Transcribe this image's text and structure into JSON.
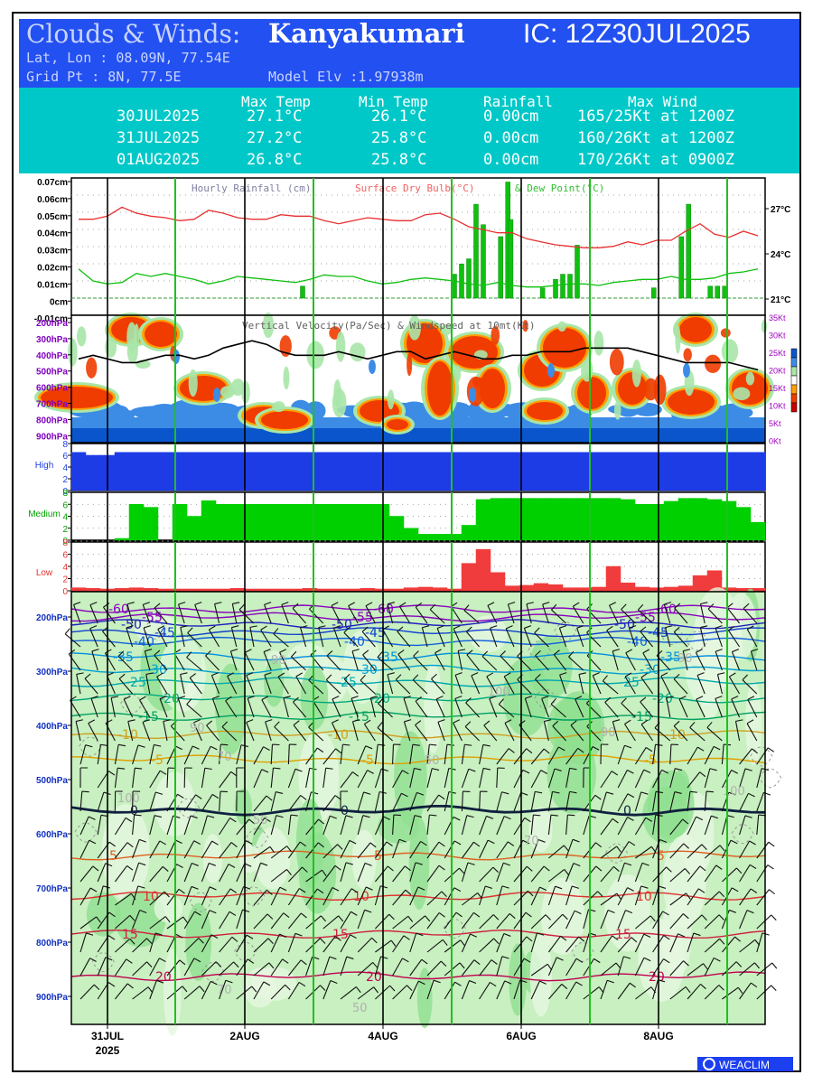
{
  "header": {
    "title": "Clouds & Winds:",
    "location": "Kanyakumari",
    "ic": "IC: 12Z30JUL2025",
    "latlon": "Lat, Lon : 08.09N, 77.54E",
    "grid": "Grid Pt  : 8N, 77.5E",
    "elev": "Model Elv :1.97938m"
  },
  "summary": {
    "columns": [
      "Max Temp",
      "Min Temp",
      "Rainfall",
      "Max Wind"
    ],
    "rows": [
      {
        "date": "30JUL2025",
        "max": "27.1°C",
        "min": "26.1°C",
        "rain": "0.00cm",
        "wind": "165/25Kt at 1200Z"
      },
      {
        "date": "31JUL2025",
        "max": "27.2°C",
        "min": "25.8°C",
        "rain": "0.00cm",
        "wind": "160/26Kt at 1200Z"
      },
      {
        "date": "01AUG2025",
        "max": "26.8°C",
        "min": "25.8°C",
        "rain": "0.00cm",
        "wind": "170/26Kt at 0900Z"
      }
    ]
  },
  "chart_data": [
    {
      "type": "bar",
      "title": "Hourly Rainfall (cm)",
      "legend": [
        "Surface Dry Bulb(°C)",
        "& Dew Point(°C)"
      ],
      "y_ticks": [
        "0.07cm",
        "0.06cm",
        "0.05cm",
        "0.04cm",
        "0.03cm",
        "0.02cm",
        "0.01cm",
        "0cm",
        "-0.01cm"
      ],
      "right_ticks": [
        "27°C",
        "24°C",
        "21°C"
      ],
      "rain_bars": [
        [
          16,
          0.007
        ],
        [
          26.5,
          0.014
        ],
        [
          27,
          0.02
        ],
        [
          27.5,
          0.023
        ],
        [
          28,
          0.055
        ],
        [
          28.5,
          0.043
        ],
        [
          29.7,
          0.036
        ],
        [
          30.2,
          0.068
        ],
        [
          30.4,
          0.046
        ],
        [
          32.6,
          0.006
        ],
        [
          33.5,
          0.011
        ],
        [
          34,
          0.014
        ],
        [
          34.5,
          0.014
        ],
        [
          35,
          0.031
        ],
        [
          40.3,
          0.006
        ],
        [
          42.2,
          0.036
        ],
        [
          42.7,
          0.055
        ],
        [
          44.2,
          0.007
        ],
        [
          44.7,
          0.007
        ],
        [
          45.2,
          0.007
        ]
      ],
      "temp_c": [
        26.3,
        26.3,
        26.5,
        27.1,
        26.7,
        26.5,
        26.4,
        26.2,
        26.3,
        26.9,
        26.7,
        26.4,
        26.3,
        26.3,
        26.6,
        26.5,
        26.5,
        26.2,
        26.0,
        26.2,
        26.4,
        26.3,
        26.2,
        26.2,
        26.6,
        26.7,
        26.3,
        25.8,
        25.6,
        25.4,
        25.4,
        25.0,
        24.8,
        24.6,
        24.5,
        24.4,
        24.4,
        24.5,
        24.8,
        24.6,
        24.9,
        24.9,
        25.5,
        26.0,
        25.3,
        25.1,
        25.5,
        25.2
      ],
      "dew_c": [
        23.0,
        22.2,
        22.0,
        22.1,
        22.7,
        22.5,
        22.7,
        22.5,
        22.3,
        22.0,
        22.2,
        22.5,
        22.4,
        22.3,
        22.2,
        22.1,
        22.3,
        22.6,
        22.5,
        22.5,
        22.2,
        22.0,
        22.1,
        22.3,
        22.4,
        22.3,
        22.2,
        22.0,
        21.9,
        22.1,
        21.9,
        21.8,
        21.8,
        21.9,
        22.0,
        22.0,
        21.9,
        22.1,
        22.2,
        22.3,
        22.3,
        22.5,
        22.3,
        22.3,
        22.4,
        22.7,
        22.8,
        23.0
      ]
    },
    {
      "type": "heatmap",
      "title": "Vertical Velocity(Pa/Sec) & Windspeed at 10mt(Kt)",
      "y_ticks": [
        "200hPa",
        "300hPa",
        "400hPa",
        "500hPa",
        "600hPa",
        "700hPa",
        "800hPa",
        "900hPa"
      ],
      "right_ticks": [
        "35Kt",
        "30Kt",
        "25Kt",
        "20Kt",
        "15Kt",
        "10Kt",
        "5Kt",
        "0Kt"
      ],
      "colorbar": [
        "#0a55cc",
        "#3c8ce6",
        "#a8e6a8",
        "#ffffff",
        "#ffa000",
        "#f03c00",
        "#c80000"
      ],
      "windspeed_kt": [
        23,
        24,
        23,
        22,
        22,
        23,
        24,
        24,
        23,
        24,
        26,
        27,
        28,
        27,
        25,
        24,
        24,
        24,
        25,
        24,
        23,
        24,
        25,
        25,
        23,
        24,
        25,
        24,
        23,
        23,
        24,
        24,
        25,
        25,
        25,
        26,
        26,
        26,
        26,
        25,
        24,
        23,
        22,
        22,
        22,
        22,
        21,
        20
      ]
    },
    {
      "type": "bar",
      "title": "High",
      "y_ticks": [
        "8",
        "6",
        "4",
        "2",
        "0"
      ],
      "values": [
        6.5,
        6,
        6,
        6.5,
        6.5,
        6.5,
        6.5,
        6.5,
        6.5,
        6.5,
        6.5,
        6.5,
        6.5,
        6.5,
        6.5,
        6.5,
        6.5,
        6.5,
        6.5,
        6.5,
        6.5,
        6.5,
        6.5,
        6.5,
        6.5,
        6.5,
        6.5,
        6.5,
        6.5,
        6.5,
        6.5,
        6.5,
        6.5,
        6.5,
        6.5,
        6.5,
        6.5,
        6.5,
        6.5,
        6.5,
        6.5,
        6.5,
        6.5,
        6.5,
        6.5,
        6.5,
        6.5,
        6.5
      ]
    },
    {
      "type": "bar",
      "title": "Medium",
      "y_ticks": [
        "8",
        "6",
        "4",
        "2",
        "0"
      ],
      "values": [
        0,
        0,
        0,
        0.3,
        6,
        5.5,
        0,
        6,
        4,
        6.6,
        6,
        6,
        6,
        6,
        6,
        6,
        6,
        6,
        6,
        6,
        6,
        6,
        4,
        2,
        1,
        1,
        1,
        2.5,
        6.8,
        7,
        7,
        7,
        7,
        7,
        7,
        7,
        7,
        7,
        6.8,
        6,
        6,
        6.5,
        7,
        7,
        6.8,
        6.5,
        5.5,
        3
      ]
    },
    {
      "type": "bar",
      "title": "Low",
      "y_ticks": [
        "8",
        "6",
        "4",
        "2",
        "0"
      ],
      "values": [
        0.5,
        0.4,
        0.3,
        0.4,
        0.5,
        0.4,
        0.3,
        0.3,
        0.3,
        0.3,
        0.3,
        0.4,
        0.3,
        0.3,
        0.3,
        0.3,
        0.4,
        0.3,
        0.3,
        0.3,
        0.4,
        0.3,
        0.3,
        0.5,
        0.6,
        0.5,
        0.3,
        4.5,
        6.8,
        3,
        0.8,
        0.9,
        1.2,
        1,
        0.5,
        0.5,
        0.6,
        4,
        1.3,
        0.6,
        0.5,
        0.6,
        0.8,
        2.5,
        3.3,
        0.5,
        0.4,
        0.4
      ]
    },
    {
      "type": "line",
      "title": "",
      "y_ticks": [
        "200hPa",
        "300hPa",
        "400hPa",
        "500hPa",
        "600hPa",
        "700hPa",
        "800hPa",
        "900hPa"
      ],
      "isotherms": [
        {
          "label": "-60",
          "hpa": 180,
          "color": "#8a00c0"
        },
        {
          "label": "-55",
          "hpa": 195,
          "color": "#8a00c0"
        },
        {
          "label": "-50",
          "hpa": 208,
          "color": "#2020c0"
        },
        {
          "label": "-45",
          "hpa": 223,
          "color": "#1040d0"
        },
        {
          "label": "-40",
          "hpa": 240,
          "color": "#1060e0"
        },
        {
          "label": "-35",
          "hpa": 268,
          "color": "#0090e0"
        },
        {
          "label": "-30",
          "hpa": 292,
          "color": "#00a0d0"
        },
        {
          "label": "-25",
          "hpa": 315,
          "color": "#00a8b0"
        },
        {
          "label": "-20",
          "hpa": 345,
          "color": "#00a880"
        },
        {
          "label": "-15",
          "hpa": 378,
          "color": "#00a060"
        },
        {
          "label": "-10",
          "hpa": 412,
          "color": "#d0a020"
        },
        {
          "label": "-5",
          "hpa": 458,
          "color": "#e0a000"
        },
        {
          "label": "0",
          "hpa": 552,
          "color": "#102040"
        },
        {
          "label": "5",
          "hpa": 635,
          "color": "#e06020"
        },
        {
          "label": "10",
          "hpa": 710,
          "color": "#e03030"
        },
        {
          "label": "15",
          "hpa": 780,
          "color": "#d02040"
        },
        {
          "label": "20",
          "hpa": 858,
          "color": "#c00050"
        }
      ],
      "humidity_labels": [
        "90",
        "100",
        "70",
        "50"
      ]
    }
  ],
  "x_axis": {
    "labels": [
      "31JUL",
      "2AUG",
      "4AUG",
      "6AUG",
      "8AUG"
    ],
    "year": "2025"
  },
  "logo": "WEACLIM"
}
